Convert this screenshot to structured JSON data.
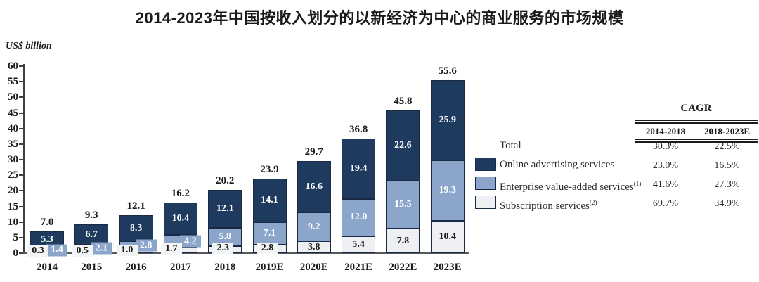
{
  "title": "2014-2023年中国按收入划分的以新经济为中心的商业服务的市场规模",
  "y_axis": {
    "unit_label": "US$ billion",
    "min": 0,
    "max": 60,
    "step": 5
  },
  "chart_data": {
    "type": "bar",
    "stacked": true,
    "title": "2014-2023年中国按收入划分的以新经济为中心的商业服务的市场规模",
    "ylabel": "US$ billion",
    "ylim": [
      0,
      60
    ],
    "ytick_step": 5,
    "grid": false,
    "legend_position": "right",
    "categories": [
      "2014",
      "2015",
      "2016",
      "2017",
      "2018",
      "2019E",
      "2020E",
      "2021E",
      "2022E",
      "2023E"
    ],
    "series": [
      {
        "name": "Subscription services(2)",
        "color": "#EDEFF3",
        "label_color": "#1a1a1a",
        "values": [
          0.3,
          0.5,
          1.0,
          1.7,
          2.3,
          2.8,
          3.8,
          5.4,
          7.8,
          10.4
        ]
      },
      {
        "name": "Enterprise value-added services(1)",
        "color": "#8CA6CB",
        "label_color": "#ffffff",
        "values": [
          1.4,
          2.1,
          2.8,
          4.2,
          5.8,
          7.1,
          9.2,
          12.0,
          15.5,
          19.3
        ]
      },
      {
        "name": "Online advertising services",
        "color": "#1F3A5F",
        "label_color": "#ffffff",
        "values": [
          5.3,
          6.7,
          8.3,
          10.4,
          12.1,
          14.1,
          16.6,
          19.4,
          22.6,
          25.9
        ]
      }
    ],
    "totals": [
      7.0,
      9.3,
      12.1,
      16.2,
      20.2,
      23.9,
      29.7,
      36.8,
      45.8,
      55.6
    ]
  },
  "legend": {
    "items": [
      {
        "label": "Total",
        "sup": "",
        "swatch": ""
      },
      {
        "label": "Online advertising services",
        "sup": "",
        "swatch": "#1F3A5F"
      },
      {
        "label": "Enterprise value-added services",
        "sup": "(1)",
        "swatch": "#8CA6CB"
      },
      {
        "label": "Subscription services",
        "sup": "(2)",
        "swatch": "#EDEFF3"
      }
    ]
  },
  "cagr_table": {
    "title": "CAGR",
    "columns": [
      "2014-2018",
      "2018-2023E"
    ],
    "rows": [
      {
        "label": "Total",
        "c1": "30.3%",
        "c2": "22.5%"
      },
      {
        "label": "Online advertising services",
        "c1": "23.0%",
        "c2": "16.5%"
      },
      {
        "label": "Enterprise value-added services(1)",
        "c1": "41.6%",
        "c2": "27.3%"
      },
      {
        "label": "Subscription services(2)",
        "c1": "69.7%",
        "c2": "34.9%"
      }
    ]
  },
  "colors": {
    "online_advertising": "#1F3A5F",
    "enterprise_value_added": "#8CA6CB",
    "subscription": "#EDEFF3",
    "bar_border": "#1b2a44",
    "axis": "#3f3f3f",
    "baseline": "#58595b",
    "text": "#1a1a1a"
  }
}
